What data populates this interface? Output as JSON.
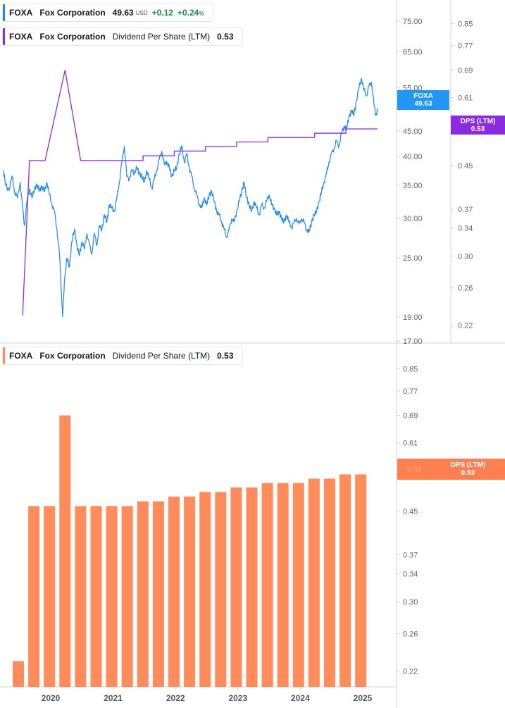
{
  "colors": {
    "price": "#1e88e5",
    "dps_line": "#8a2be2",
    "bars": "#ff8c5a",
    "bar_tag": "#ff7f50",
    "price_tag": "#2196f3",
    "dps_tag": "#8a2be2",
    "axis_text": "#666666",
    "border": "#cfd3da"
  },
  "legend_top_price": {
    "ticker": "FOXA",
    "name": "Fox Corporation",
    "price": "49.63",
    "currency": "USD",
    "change": "+0.12",
    "change_pct": "+0.24",
    "pct_sign": "%"
  },
  "legend_top_dps": {
    "ticker": "FOXA",
    "name": "Fox Corporation",
    "metric": "Dividend Per Share (LTM)",
    "value": "0.53"
  },
  "legend_bottom": {
    "ticker": "FOXA",
    "name": "Fox Corporation",
    "metric": "Dividend Per Share (LTM)",
    "value": "0.53"
  },
  "tags": {
    "price_ticker": "FOXA",
    "price_value": "49.63",
    "dps_label": "DPS (LTM)",
    "dps_value": "0.53",
    "bar_label": "DPS (LTM)",
    "bar_value": "0.53",
    "bar_axis_value": "0.53"
  },
  "chart_data": [
    {
      "type": "line",
      "scale": "log",
      "ylim": [
        17.0,
        80.0
      ],
      "y_ticks": [
        "75.00",
        "65.00",
        "55.00",
        "45.00",
        "40.00",
        "35.00",
        "30.00",
        "25.00",
        "19.00",
        "17.00"
      ],
      "series": [
        {
          "name": "FOXA",
          "points": [
            [
              2019.24,
              37.5
            ],
            [
              2019.28,
              35.0
            ],
            [
              2019.33,
              34.2
            ],
            [
              2019.38,
              36.5
            ],
            [
              2019.42,
              34.0
            ],
            [
              2019.47,
              33.0
            ],
            [
              2019.51,
              35.5
            ],
            [
              2019.55,
              31.5
            ],
            [
              2019.58,
              29.0
            ],
            [
              2019.62,
              32.5
            ],
            [
              2019.66,
              34.5
            ],
            [
              2019.7,
              33.0
            ],
            [
              2019.74,
              34.5
            ],
            [
              2019.78,
              35.0
            ],
            [
              2019.82,
              34.2
            ],
            [
              2019.86,
              34.8
            ],
            [
              2019.9,
              34.0
            ],
            [
              2019.94,
              35.5
            ],
            [
              2019.98,
              33.5
            ],
            [
              2020.02,
              32.0
            ],
            [
              2020.06,
              31.0
            ],
            [
              2020.1,
              28.5
            ],
            [
              2020.14,
              25.5
            ],
            [
              2020.17,
              21.5
            ],
            [
              2020.19,
              19.0
            ],
            [
              2020.22,
              22.5
            ],
            [
              2020.26,
              25.0
            ],
            [
              2020.3,
              24.0
            ],
            [
              2020.34,
              27.0
            ],
            [
              2020.38,
              28.5
            ],
            [
              2020.42,
              26.5
            ],
            [
              2020.46,
              25.2
            ],
            [
              2020.5,
              27.0
            ],
            [
              2020.54,
              26.0
            ],
            [
              2020.58,
              28.0
            ],
            [
              2020.62,
              26.5
            ],
            [
              2020.66,
              25.5
            ],
            [
              2020.7,
              28.0
            ],
            [
              2020.74,
              26.5
            ],
            [
              2020.78,
              29.0
            ],
            [
              2020.82,
              28.5
            ],
            [
              2020.86,
              30.5
            ],
            [
              2020.9,
              29.5
            ],
            [
              2020.94,
              32.0
            ],
            [
              2020.98,
              31.5
            ],
            [
              2021.02,
              31.0
            ],
            [
              2021.06,
              33.0
            ],
            [
              2021.1,
              35.5
            ],
            [
              2021.14,
              39.0
            ],
            [
              2021.18,
              42.0
            ],
            [
              2021.22,
              36.5
            ],
            [
              2021.26,
              36.0
            ],
            [
              2021.3,
              37.5
            ],
            [
              2021.34,
              37.0
            ],
            [
              2021.38,
              38.0
            ],
            [
              2021.42,
              37.0
            ],
            [
              2021.46,
              36.5
            ],
            [
              2021.5,
              35.5
            ],
            [
              2021.54,
              37.5
            ],
            [
              2021.58,
              36.0
            ],
            [
              2021.62,
              34.5
            ],
            [
              2021.66,
              36.0
            ],
            [
              2021.7,
              37.5
            ],
            [
              2021.74,
              39.5
            ],
            [
              2021.78,
              41.0
            ],
            [
              2021.82,
              38.5
            ],
            [
              2021.86,
              39.0
            ],
            [
              2021.9,
              38.0
            ],
            [
              2021.94,
              36.5
            ],
            [
              2021.98,
              37.5
            ],
            [
              2022.02,
              38.0
            ],
            [
              2022.06,
              40.5
            ],
            [
              2022.1,
              42.0
            ],
            [
              2022.14,
              39.0
            ],
            [
              2022.18,
              40.5
            ],
            [
              2022.22,
              38.0
            ],
            [
              2022.26,
              36.5
            ],
            [
              2022.3,
              34.5
            ],
            [
              2022.34,
              33.5
            ],
            [
              2022.38,
              32.0
            ],
            [
              2022.42,
              31.5
            ],
            [
              2022.46,
              33.0
            ],
            [
              2022.5,
              32.0
            ],
            [
              2022.54,
              33.5
            ],
            [
              2022.58,
              34.0
            ],
            [
              2022.62,
              32.5
            ],
            [
              2022.66,
              31.0
            ],
            [
              2022.7,
              30.5
            ],
            [
              2022.74,
              29.5
            ],
            [
              2022.78,
              28.5
            ],
            [
              2022.82,
              27.5
            ],
            [
              2022.86,
              28.5
            ],
            [
              2022.9,
              30.0
            ],
            [
              2022.94,
              29.5
            ],
            [
              2022.98,
              31.0
            ],
            [
              2023.02,
              32.5
            ],
            [
              2023.06,
              34.0
            ],
            [
              2023.1,
              35.5
            ],
            [
              2023.14,
              33.0
            ],
            [
              2023.18,
              32.0
            ],
            [
              2023.22,
              31.0
            ],
            [
              2023.26,
              32.5
            ],
            [
              2023.3,
              31.5
            ],
            [
              2023.34,
              30.5
            ],
            [
              2023.38,
              32.0
            ],
            [
              2023.42,
              31.5
            ],
            [
              2023.46,
              32.5
            ],
            [
              2023.5,
              33.5
            ],
            [
              2023.54,
              32.0
            ],
            [
              2023.58,
              31.5
            ],
            [
              2023.62,
              30.5
            ],
            [
              2023.66,
              31.0
            ],
            [
              2023.7,
              30.0
            ],
            [
              2023.74,
              29.5
            ],
            [
              2023.78,
              30.5
            ],
            [
              2023.82,
              29.5
            ],
            [
              2023.86,
              28.8
            ],
            [
              2023.9,
              29.5
            ],
            [
              2023.94,
              30.0
            ],
            [
              2023.98,
              29.2
            ],
            [
              2024.02,
              30.0
            ],
            [
              2024.06,
              29.5
            ],
            [
              2024.1,
              28.5
            ],
            [
              2024.14,
              28.2
            ],
            [
              2024.18,
              29.5
            ],
            [
              2024.22,
              30.5
            ],
            [
              2024.26,
              31.0
            ],
            [
              2024.3,
              32.5
            ],
            [
              2024.34,
              34.0
            ],
            [
              2024.38,
              35.5
            ],
            [
              2024.42,
              37.0
            ],
            [
              2024.46,
              39.0
            ],
            [
              2024.5,
              40.5
            ],
            [
              2024.54,
              41.5
            ],
            [
              2024.58,
              43.0
            ],
            [
              2024.62,
              42.0
            ],
            [
              2024.66,
              44.5
            ],
            [
              2024.7,
              46.0
            ],
            [
              2024.74,
              45.5
            ],
            [
              2024.78,
              48.0
            ],
            [
              2024.82,
              49.5
            ],
            [
              2024.86,
              48.5
            ],
            [
              2024.9,
              52.0
            ],
            [
              2024.94,
              55.0
            ],
            [
              2024.98,
              57.5
            ],
            [
              2025.02,
              54.5
            ],
            [
              2025.06,
              53.0
            ],
            [
              2025.1,
              55.5
            ],
            [
              2025.14,
              56.5
            ],
            [
              2025.18,
              51.0
            ],
            [
              2025.21,
              48.5
            ],
            [
              2025.24,
              49.63
            ]
          ]
        }
      ]
    },
    {
      "type": "line",
      "scale": "log",
      "ylim": [
        0.205,
        0.915
      ],
      "y_ticks": [
        "0.85",
        "0.77",
        "0.69",
        "0.61",
        "0.45",
        "0.37",
        "0.34",
        "0.30",
        "0.26",
        "0.22"
      ],
      "series": [
        {
          "name": "Dividend Per Share (LTM)",
          "x": [
            2019.55,
            2019.66,
            2019.91,
            2020.23,
            2020.48,
            2020.73,
            2020.98,
            2021.23,
            2021.48,
            2021.73,
            2021.98,
            2022.23,
            2022.48,
            2022.73,
            2022.98,
            2023.23,
            2023.48,
            2023.73,
            2023.98,
            2024.23,
            2024.48,
            2024.73,
            2024.98
          ],
          "values": [
            0.23,
            0.46,
            0.46,
            0.69,
            0.46,
            0.46,
            0.46,
            0.46,
            0.47,
            0.47,
            0.48,
            0.48,
            0.49,
            0.49,
            0.5,
            0.5,
            0.51,
            0.51,
            0.51,
            0.52,
            0.52,
            0.53,
            0.53
          ]
        }
      ]
    },
    {
      "type": "bar",
      "scale": "log",
      "ylim": [
        0.205,
        0.915
      ],
      "y_ticks": [
        "0.85",
        "0.77",
        "0.69",
        "0.61",
        "0.45",
        "0.37",
        "0.34",
        "0.30",
        "0.26",
        "0.22"
      ],
      "x_ticks": [
        "2020",
        "2021",
        "2022",
        "2023",
        "2024",
        "2025"
      ],
      "series": [
        {
          "name": "Dividend Per Share (LTM)",
          "x": [
            2019.55,
            2019.8,
            2020.05,
            2020.3,
            2020.55,
            2020.8,
            2021.05,
            2021.3,
            2021.55,
            2021.8,
            2022.05,
            2022.3,
            2022.55,
            2022.8,
            2023.05,
            2023.3,
            2023.55,
            2023.8,
            2024.05,
            2024.3,
            2024.55,
            2024.8,
            2025.05
          ],
          "values": [
            0.23,
            0.46,
            0.46,
            0.69,
            0.46,
            0.46,
            0.46,
            0.46,
            0.47,
            0.47,
            0.48,
            0.48,
            0.49,
            0.49,
            0.5,
            0.5,
            0.51,
            0.51,
            0.51,
            0.52,
            0.52,
            0.53,
            0.53
          ]
        }
      ]
    }
  ]
}
